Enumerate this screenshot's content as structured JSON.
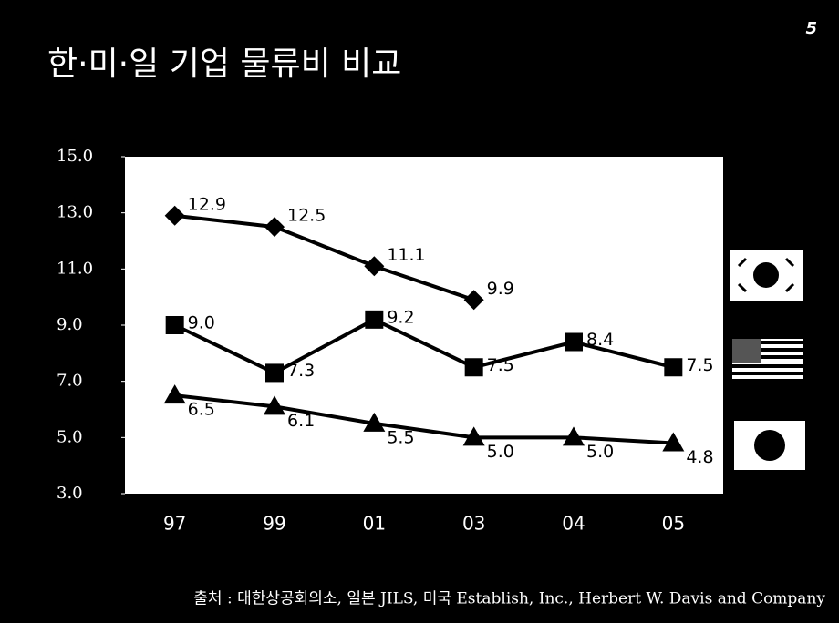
{
  "chart_data": {
    "type": "line",
    "title": "한·미·일 기업 물류비 비교",
    "page_number": "5",
    "source": "출처 : 대한상공회의소, 일본 JILS, 미국 Establish, Inc., Herbert W. Davis and Company",
    "categories": [
      "97",
      "99",
      "01",
      "03",
      "04",
      "05"
    ],
    "series": [
      {
        "color": "#000000",
        "marker": "diamond",
        "values": [
          12.9,
          12.5,
          11.1,
          9.9,
          null,
          null
        ],
        "value_labels": [
          "12.9",
          "12.5",
          "11.1",
          "9.9",
          null,
          null
        ]
      },
      {
        "color": "#000000",
        "marker": "square",
        "values": [
          9.0,
          7.3,
          9.2,
          7.5,
          8.4,
          7.5
        ],
        "value_labels": [
          "9.0",
          "7.3",
          "9.2",
          "7.5",
          "8.4",
          "7.5"
        ]
      },
      {
        "color": "#000000",
        "marker": "triangle",
        "values": [
          6.5,
          6.1,
          5.5,
          5.0,
          5.0,
          4.8
        ],
        "value_labels": [
          "6.5",
          "6.1",
          "5.5",
          "5.0",
          "5.0",
          "4.8"
        ]
      }
    ],
    "ylim": [
      3,
      15
    ],
    "yticks": [
      {
        "value": 3,
        "label": "3.0"
      },
      {
        "value": 5,
        "label": "5.0"
      },
      {
        "value": 7,
        "label": "7.0"
      },
      {
        "value": 9,
        "label": "9.0"
      },
      {
        "value": 11,
        "label": "11.0"
      },
      {
        "value": 13,
        "label": "13.0"
      },
      {
        "value": 15,
        "label": "15.0"
      }
    ],
    "grid": false
  }
}
